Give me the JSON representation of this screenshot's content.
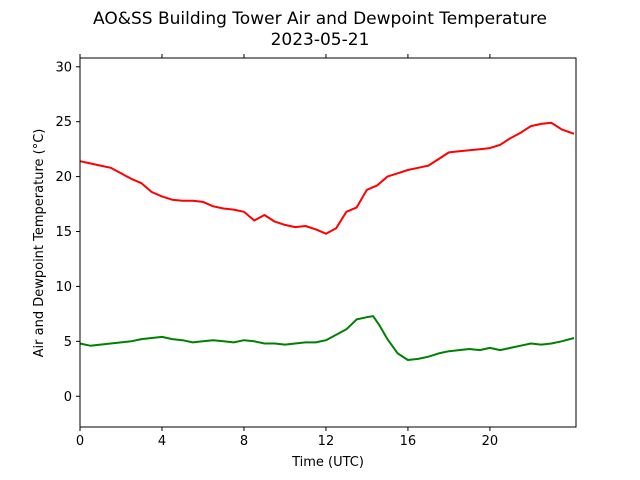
{
  "chart_data": {
    "type": "line",
    "title": "AO&SS Building Tower Air and Dewpoint Temperature",
    "subtitle": "2023-05-21",
    "xlabel": "Time (UTC)",
    "ylabel": "Air and Dewpoint Temperature (°C)",
    "xlim": [
      0,
      24.2
    ],
    "ylim": [
      -2.8,
      30.8
    ],
    "xticks": [
      0,
      4,
      8,
      12,
      16,
      20
    ],
    "yticks": [
      0,
      5,
      10,
      15,
      20,
      25,
      30
    ],
    "grid": false,
    "series": [
      {
        "color": "#ff0000",
        "x": [
          0,
          0.5,
          1,
          1.5,
          2,
          2.5,
          3,
          3.5,
          4,
          4.5,
          5,
          5.5,
          6,
          6.5,
          7,
          7.5,
          8,
          8.5,
          9,
          9.5,
          10,
          10.5,
          11,
          11.5,
          12,
          12.5,
          13,
          13.5,
          14,
          14.5,
          15,
          15.5,
          16,
          16.5,
          17,
          17.5,
          18,
          18.5,
          19,
          19.5,
          20,
          20.5,
          21,
          21.5,
          22,
          22.5,
          23,
          23.5,
          24.1
        ],
        "values": [
          21.4,
          21.2,
          21.0,
          20.8,
          20.3,
          19.8,
          19.4,
          18.6,
          18.2,
          17.9,
          17.8,
          17.8,
          17.7,
          17.3,
          17.1,
          17.0,
          16.8,
          16.0,
          16.5,
          15.9,
          15.6,
          15.4,
          15.5,
          15.2,
          14.8,
          15.3,
          16.8,
          17.2,
          18.8,
          19.2,
          20.0,
          20.3,
          20.6,
          20.8,
          21.0,
          21.6,
          22.2,
          22.3,
          22.4,
          22.5,
          22.6,
          22.9,
          23.5,
          24.0,
          24.6,
          24.8,
          24.9,
          24.3,
          23.9
        ]
      },
      {
        "color": "#008000",
        "x": [
          0,
          0.5,
          1,
          1.5,
          2,
          2.5,
          3,
          3.5,
          4,
          4.5,
          5,
          5.5,
          6,
          6.5,
          7,
          7.5,
          8,
          8.5,
          9,
          9.5,
          10,
          10.5,
          11,
          11.5,
          12,
          12.5,
          13,
          13.5,
          14,
          14.3,
          14.6,
          15,
          15.5,
          16,
          16.5,
          17,
          17.5,
          18,
          18.5,
          19,
          19.5,
          20,
          20.5,
          21,
          21.5,
          22,
          22.5,
          23,
          23.5,
          24.1
        ],
        "values": [
          4.8,
          4.6,
          4.7,
          4.8,
          4.9,
          5.0,
          5.2,
          5.3,
          5.4,
          5.2,
          5.1,
          4.9,
          5.0,
          5.1,
          5.0,
          4.9,
          5.1,
          5.0,
          4.8,
          4.8,
          4.7,
          4.8,
          4.9,
          4.9,
          5.1,
          5.6,
          6.1,
          7.0,
          7.2,
          7.3,
          6.5,
          5.2,
          3.9,
          3.3,
          3.4,
          3.6,
          3.9,
          4.1,
          4.2,
          4.3,
          4.2,
          4.4,
          4.2,
          4.4,
          4.6,
          4.8,
          4.7,
          4.8,
          5.0,
          5.3
        ]
      }
    ]
  }
}
